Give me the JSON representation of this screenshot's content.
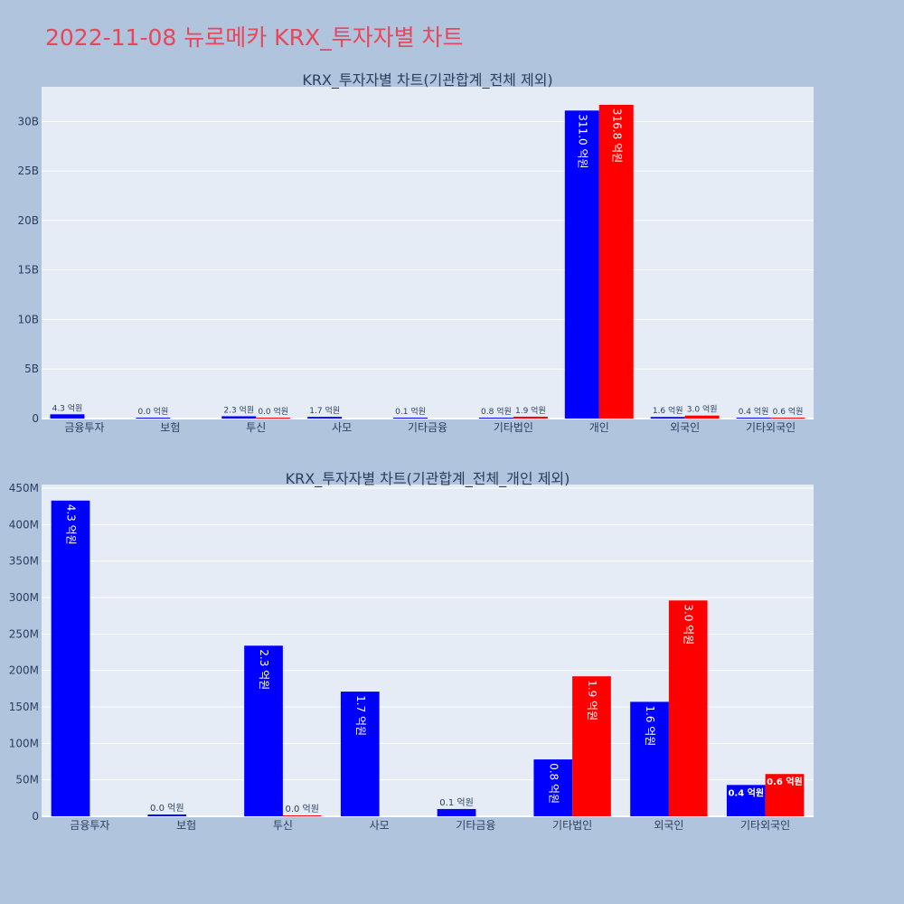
{
  "page": {
    "title": "2022-11-08 뉴로메카 KRX_투자자별 차트",
    "colors": {
      "background": "#b0c4de",
      "plot_background": "#e5ecf6",
      "title": "#e8465a",
      "buy": "#0000ff",
      "sell": "#ff0000"
    }
  },
  "chart_data": [
    {
      "type": "bar",
      "title": "KRX_투자자별 차트(기관합계_전체 제외)",
      "xlabel": "",
      "ylabel": "",
      "categories": [
        "금융투자",
        "보험",
        "투신",
        "사모",
        "기타금융",
        "기타법인",
        "개인",
        "외국인",
        "기타외국인"
      ],
      "ylim": [
        0,
        33500000000
      ],
      "yticks": [
        0,
        5000000000,
        10000000000,
        15000000000,
        20000000000,
        25000000000,
        30000000000
      ],
      "ytick_labels": [
        "0",
        "5B",
        "10B",
        "15B",
        "20B",
        "25B",
        "30B"
      ],
      "grid": true,
      "series": [
        {
          "color": "#0000ff",
          "values": [
            430000000,
            0,
            230000000,
            170000000,
            10000000,
            80000000,
            31100000000,
            160000000,
            40000000
          ],
          "labels": [
            "4.3 억원",
            "0.0 억원",
            "2.3 억원",
            "1.7 억원",
            "0.1 억원",
            "0.8 억원",
            "311.0 억원",
            "1.6 억원",
            "0.4 억원"
          ]
        },
        {
          "color": "#ff0000",
          "values": [
            null,
            null,
            0,
            null,
            null,
            190000000,
            31680000000,
            300000000,
            60000000
          ],
          "labels": [
            "",
            "",
            "0.0 억원",
            "",
            "",
            "1.9 억원",
            "316.8 억원",
            "3.0 억원",
            "0.6 억원"
          ]
        }
      ]
    },
    {
      "type": "bar",
      "title": "KRX_투자자별 차트(기관합계_전체_개인 제외)",
      "xlabel": "",
      "ylabel": "",
      "categories": [
        "금융투자",
        "보험",
        "투신",
        "사모",
        "기타금융",
        "기타법인",
        "외국인",
        "기타외국인"
      ],
      "ylim": [
        0,
        455000000
      ],
      "yticks": [
        0,
        50000000,
        100000000,
        150000000,
        200000000,
        250000000,
        300000000,
        350000000,
        400000000,
        450000000
      ],
      "ytick_labels": [
        "0",
        "50M",
        "100M",
        "150M",
        "200M",
        "250M",
        "300M",
        "350M",
        "400M",
        "450M"
      ],
      "grid": true,
      "series": [
        {
          "color": "#0000ff",
          "values": [
            433000000,
            2500000,
            234000000,
            171000000,
            10000000,
            78000000,
            157000000,
            43000000
          ],
          "labels": [
            "4.3 억원",
            "0.0 억원",
            "2.3 억원",
            "1.7 억원",
            "0.1 억원",
            "0.8 억원",
            "1.6 억원",
            "0.4 억원"
          ]
        },
        {
          "color": "#ff0000",
          "values": [
            null,
            null,
            800000,
            null,
            null,
            192000000,
            296000000,
            58000000
          ],
          "labels": [
            "",
            "",
            "0.0 억원",
            "",
            "",
            "1.9 억원",
            "3.0 억원",
            "0.6 억원"
          ]
        }
      ]
    }
  ]
}
